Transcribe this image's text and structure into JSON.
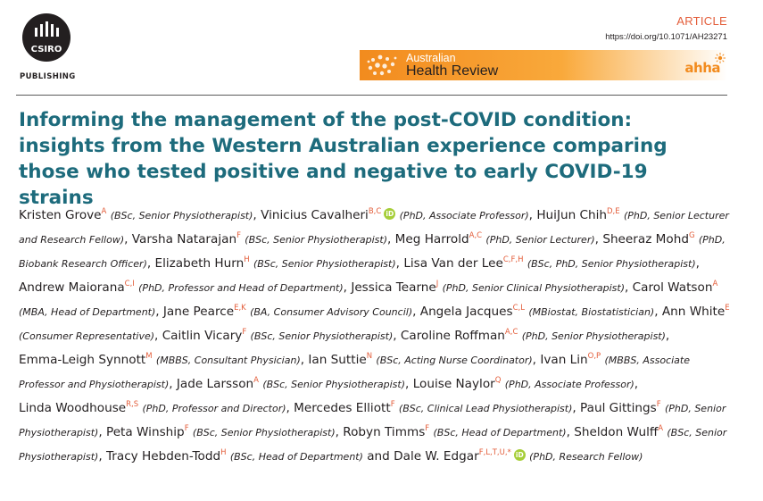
{
  "publisher": {
    "logo_text": "CSIRO",
    "imprint": "PUBLISHING",
    "logo_icon": "csiro-logo-icon"
  },
  "article_type": "ARTICLE",
  "doi": "https://doi.org/10.1071/AH23271",
  "journal": {
    "line1": "Australian",
    "line2": "Health Review",
    "partner_logo": "ahha",
    "accent_color": "#f28b1e"
  },
  "title": "Informing the management of the post-COVID condition: insights from the Western Australian experience comparing those who tested positive and negative to early COVID-19 strains",
  "title_color": "#1d6b7c",
  "affiliation_color": "#e35d3a",
  "authors": [
    {
      "name": "Kristen Grove",
      "aff": "A",
      "role": "(BSc, Senior Physiotherapist)",
      "sep": ",",
      "orcid": false
    },
    {
      "name": "Vinicius Cavalheri",
      "aff": "B,C",
      "role": "(PhD, Associate Professor)",
      "sep": ",",
      "orcid": true
    },
    {
      "name": "HuiJun Chih",
      "aff": "D,E",
      "role": "(PhD, Senior Lecturer and Research Fellow)",
      "sep": ",",
      "orcid": false
    },
    {
      "name": "Varsha Natarajan",
      "aff": "F",
      "role": "(BSc, Senior Physiotherapist)",
      "sep": ",",
      "orcid": false
    },
    {
      "name": "Meg Harrold",
      "aff": "A,C",
      "role": "(PhD, Senior Lecturer)",
      "sep": ",",
      "orcid": false
    },
    {
      "name": "Sheeraz Mohd",
      "aff": "G",
      "role": "(PhD, Biobank Research Officer)",
      "sep": ",",
      "orcid": false
    },
    {
      "name": "Elizabeth Hurn",
      "aff": "H",
      "role": "(BSc, Senior Physiotherapist)",
      "sep": ",",
      "orcid": false
    },
    {
      "name": "Lisa Van der Lee",
      "aff": "C,F,H",
      "role": "(BSc, PhD, Senior Physiotherapist)",
      "sep": ",",
      "orcid": false
    },
    {
      "name": "Andrew Maiorana",
      "aff": "C,I",
      "role": "(PhD, Professor and Head of Department)",
      "sep": ",",
      "orcid": false
    },
    {
      "name": "Jessica Tearne",
      "aff": "J",
      "role": "(PhD, Senior Clinical Physiotherapist)",
      "sep": ",",
      "orcid": false
    },
    {
      "name": "Carol Watson",
      "aff": "A",
      "role": "(MBA, Head of Department)",
      "sep": ",",
      "orcid": false
    },
    {
      "name": "Jane Pearce",
      "aff": "E,K",
      "role": "(BA, Consumer Advisory Council)",
      "sep": ",",
      "orcid": false
    },
    {
      "name": "Angela Jacques",
      "aff": "C,L",
      "role": "(MBiostat, Biostatistician)",
      "sep": ",",
      "orcid": false
    },
    {
      "name": "Ann  White",
      "aff": "E",
      "role": "(Consumer Representative)",
      "sep": ",",
      "orcid": false
    },
    {
      "name": "Caitlin Vicary",
      "aff": "F",
      "role": "(BSc, Senior Physiotherapist)",
      "sep": ",",
      "orcid": false
    },
    {
      "name": "Caroline Roffman",
      "aff": "A,C",
      "role": "(PhD, Senior Physiotherapist)",
      "sep": ",",
      "orcid": false
    },
    {
      "name": "Emma-Leigh Synnott",
      "aff": "M",
      "role": "(MBBS, Consultant Physician)",
      "sep": ",",
      "orcid": false
    },
    {
      "name": "Ian Suttie",
      "aff": "N",
      "role": "(BSc, Acting Nurse Coordinator)",
      "sep": ",",
      "orcid": false
    },
    {
      "name": "Ivan Lin",
      "aff": "O,P",
      "role": "(MBBS, Associate Professor and Physiotherapist)",
      "sep": ",",
      "orcid": false
    },
    {
      "name": "Jade Larsson",
      "aff": "A",
      "role": "(BSc, Senior Physiotherapist)",
      "sep": ",",
      "orcid": false
    },
    {
      "name": "Louise Naylor",
      "aff": "Q",
      "role": "(PhD, Associate Professor)",
      "sep": ",",
      "orcid": false
    },
    {
      "name": "Linda Woodhouse",
      "aff": "R,S",
      "role": "(PhD, Professor and Director)",
      "sep": ",",
      "orcid": false
    },
    {
      "name": "Mercedes Elliott",
      "aff": "F",
      "role": "(BSc, Clinical Lead Physiotherapist)",
      "sep": ",",
      "orcid": false
    },
    {
      "name": "Paul Gittings",
      "aff": "F",
      "role": "(PhD, Senior Physiotherapist)",
      "sep": ",",
      "orcid": false
    },
    {
      "name": "Peta Winship",
      "aff": "F",
      "role": "(BSc, Senior Physiotherapist)",
      "sep": ",",
      "orcid": false
    },
    {
      "name": "Robyn Timms",
      "aff": "F",
      "role": "(BSc, Head of Department)",
      "sep": ",",
      "orcid": false
    },
    {
      "name": "Sheldon Wulff",
      "aff": "A",
      "role": "(BSc, Senior Physiotherapist)",
      "sep": ",",
      "orcid": false
    },
    {
      "name": "Tracy Hebden-Todd",
      "aff": "H",
      "role": "(BSc, Head of Department)",
      "sep": " and",
      "orcid": false
    },
    {
      "name": "Dale W. Edgar",
      "aff": "F,L,T,U,*",
      "role": "(PhD, Research Fellow)",
      "sep": "",
      "orcid": true
    }
  ]
}
